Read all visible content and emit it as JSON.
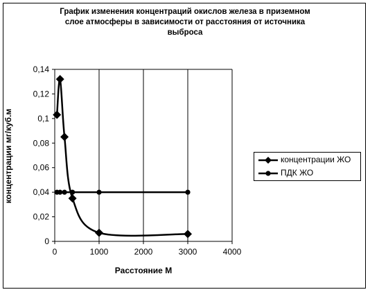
{
  "chart_data": {
    "type": "line",
    "title_lines": [
      "График изменения концентраций окислов железа в приземном",
      "слое атмосферы в зависимости от расстояния от источника",
      "выброса"
    ],
    "xlabel": "Расстояние М",
    "ylabel": "концентрации мг/куб.м",
    "xlim": [
      0,
      4000
    ],
    "ylim": [
      0,
      0.14
    ],
    "x_ticks": [
      0,
      1000,
      2000,
      3000,
      4000
    ],
    "x_tick_labels": [
      "0",
      "1000",
      "2000",
      "3000",
      "4000"
    ],
    "y_ticks": [
      0,
      0.02,
      0.04,
      0.06,
      0.08,
      0.1,
      0.12,
      0.14
    ],
    "y_tick_labels": [
      "0",
      "0,02",
      "0,04",
      "0,06",
      "0,08",
      "0,1",
      "0,12",
      "0,14"
    ],
    "grid": "vertical gridlines",
    "legend_position": "right",
    "series": [
      {
        "name": "концентрации ЖО",
        "marker": "diamond",
        "x": [
          50,
          120,
          220,
          400,
          1000,
          3000
        ],
        "y": [
          0.103,
          0.132,
          0.085,
          0.035,
          0.007,
          0.006
        ]
      },
      {
        "name": "ПДК ЖО",
        "marker": "circle",
        "x": [
          50,
          120,
          220,
          400,
          1000,
          3000
        ],
        "y": [
          0.04,
          0.04,
          0.04,
          0.04,
          0.04,
          0.04
        ]
      }
    ]
  }
}
